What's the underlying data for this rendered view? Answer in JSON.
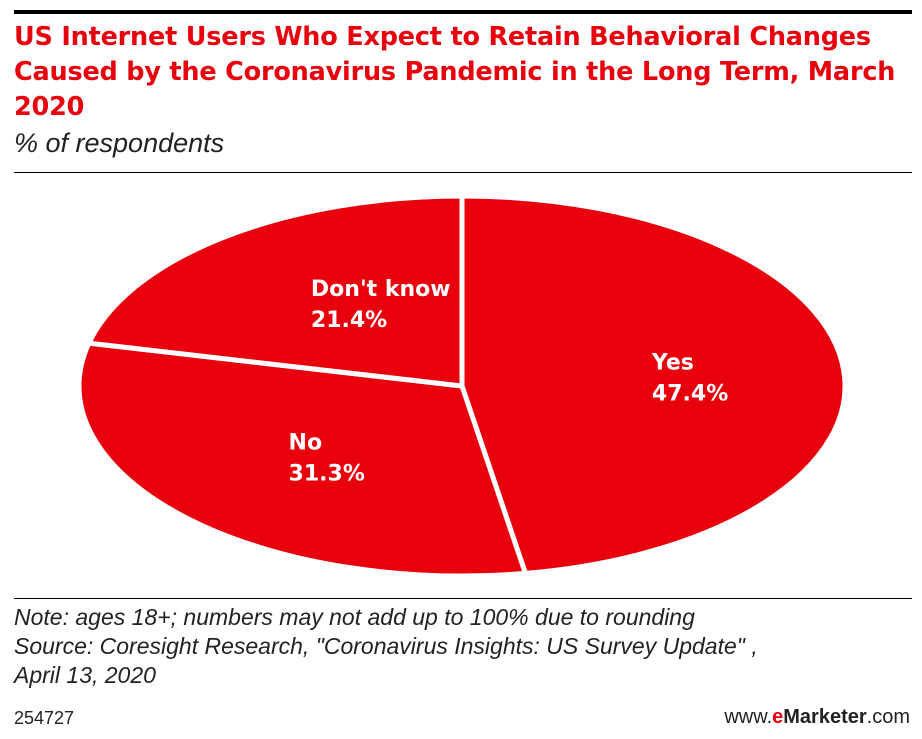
{
  "header": {
    "title": "US Internet Users Who Expect to Retain Behavioral Changes Caused by the Coronavirus Pandemic in the Long Term, March 2020",
    "subtitle": "% of respondents"
  },
  "chart_data": {
    "type": "pie",
    "title": "US Internet Users Who Expect to Retain Behavioral Changes Caused by the Coronavirus Pandemic in the Long Term, March 2020",
    "subtitle": "% of respondents",
    "categories": [
      "Yes",
      "No",
      "Don't know"
    ],
    "values": [
      47.4,
      31.3,
      21.4
    ],
    "labels": [
      "47.4%",
      "31.3%",
      "21.4%"
    ],
    "colors": [
      "#e8000d",
      "#e8000d",
      "#e8000d"
    ],
    "legend": "none",
    "unit": "%"
  },
  "footer": {
    "note_lines": [
      "Note: ages 18+; numbers may not add up to 100% due to rounding",
      "Source: Coresight Research, \"Coronavirus Insights: US Survey Update\" ,",
      "April 13, 2020"
    ],
    "chart_id": "254727",
    "brand": {
      "prefix": "www.",
      "accent": "e",
      "name": "Marketer",
      "suffix": ".com"
    }
  },
  "colors": {
    "accent": "#e8000d",
    "text": "#222222",
    "rule": "#000000"
  }
}
